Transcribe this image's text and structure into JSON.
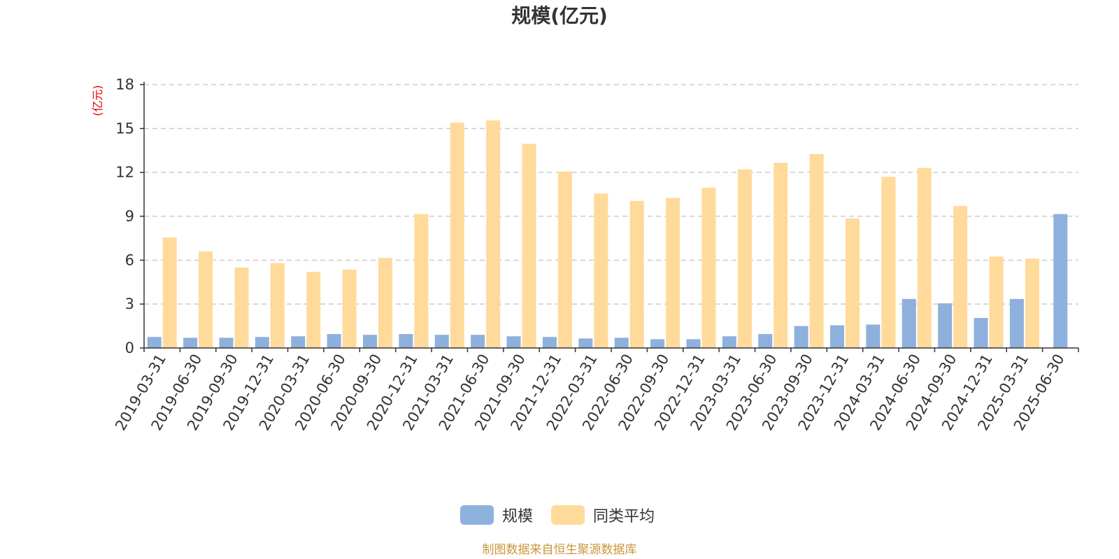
{
  "chart_data": {
    "type": "bar",
    "title": "规模(亿元)",
    "unit_label": "(亿元)",
    "source_note": "制图数据来自恒生聚源数据库",
    "ylim": [
      0,
      18
    ],
    "yticks": [
      "0",
      "3",
      "6",
      "9",
      "12",
      "15",
      "18"
    ],
    "grid": true,
    "legend_position": "bottom-center",
    "categories": [
      "2019-03-31",
      "2019-06-30",
      "2019-09-30",
      "2019-12-31",
      "2020-03-31",
      "2020-06-30",
      "2020-09-30",
      "2020-12-31",
      "2021-03-31",
      "2021-06-30",
      "2021-09-30",
      "2021-12-31",
      "2022-03-31",
      "2022-06-30",
      "2022-09-30",
      "2022-12-31",
      "2023-03-31",
      "2023-06-30",
      "2023-09-30",
      "2023-12-31",
      "2024-03-31",
      "2024-06-30",
      "2024-09-30",
      "2024-12-31",
      "2025-03-31",
      "2025-06-30"
    ],
    "series": [
      {
        "name": "规模",
        "color": "#8eb0dd",
        "values": [
          0.75,
          0.7,
          0.7,
          0.75,
          0.8,
          0.95,
          0.9,
          0.95,
          0.9,
          0.9,
          0.8,
          0.75,
          0.65,
          0.7,
          0.6,
          0.6,
          0.8,
          0.95,
          1.5,
          1.55,
          1.6,
          3.35,
          3.05,
          2.05,
          3.35,
          9.15
        ]
      },
      {
        "name": "同类平均",
        "color": "#ffda9a",
        "values": [
          7.55,
          6.6,
          5.5,
          5.8,
          5.2,
          5.35,
          6.15,
          9.15,
          15.4,
          15.55,
          13.95,
          12.05,
          10.55,
          10.05,
          10.25,
          10.95,
          12.2,
          12.65,
          13.25,
          8.85,
          11.7,
          12.3,
          9.7,
          6.25,
          6.1,
          null
        ]
      }
    ]
  }
}
